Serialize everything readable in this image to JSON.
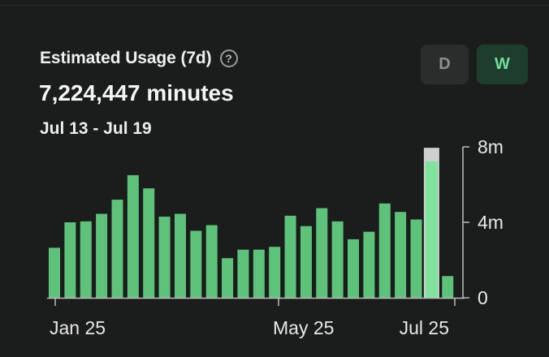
{
  "header": {
    "title": "Estimated Usage (7d)",
    "help_icon": "?",
    "total": "7,224,447 minutes",
    "range": "Jul 13 - Jul 19"
  },
  "period_toggle": {
    "options": [
      {
        "label": "D",
        "selected": false
      },
      {
        "label": "W",
        "selected": true
      }
    ]
  },
  "colors": {
    "bar": "#5fc27b",
    "bar_highlight": "#7fe29d",
    "bar_cap": "#cfcfcf",
    "axis": "#bdbdbd"
  },
  "chart_data": {
    "type": "bar",
    "x_tick_labels": [
      "Jan 25",
      "May 25",
      "Jul 25"
    ],
    "y_tick_labels": [
      "8m",
      "4m",
      "0"
    ],
    "ylim": [
      0,
      8000000
    ],
    "values": [
      2650000,
      4000000,
      4050000,
      4450000,
      5200000,
      6500000,
      5800000,
      4300000,
      4450000,
      3550000,
      3850000,
      2100000,
      2550000,
      2550000,
      2700000,
      4350000,
      3800000,
      4750000,
      4050000,
      3100000,
      3500000,
      5000000,
      4550000,
      4150000,
      7224447,
      1150000
    ],
    "highlight_index": 24,
    "highlight_cap_value": 7950000
  }
}
